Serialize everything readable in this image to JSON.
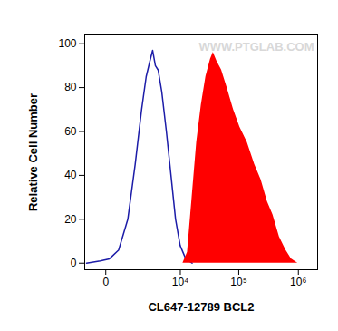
{
  "chart_data": {
    "type": "histogram",
    "x_label": "CL647-12789 BCL2",
    "y_label": "Relative Cell Number",
    "annotation": "WWW.PTGLAB.COM",
    "log": "x",
    "grid": false,
    "xlim": [
      -750,
      2100000
    ],
    "xticks": [
      0,
      {
        "value": 10000,
        "label": "10⁴"
      },
      {
        "value": 100000,
        "label": "10⁵"
      },
      {
        "value": 1000000,
        "label": "10⁶"
      }
    ],
    "ylim": [
      -3,
      104
    ],
    "yticks": [
      0,
      20,
      40,
      60,
      80,
      100
    ],
    "series": [
      {
        "type": "line",
        "color": "#1c1ca8",
        "x": [
          -660,
          -142,
          91,
          385,
          803,
          1262,
          1785,
          2247,
          2680,
          3048,
          3457,
          3913,
          4593,
          5598,
          6800,
          8230,
          9940,
          12440,
          16100
        ],
        "values": [
          0,
          1,
          2,
          6,
          20,
          45,
          70,
          85,
          92,
          97,
          90,
          88,
          78,
          60,
          40,
          20,
          8,
          2,
          0
        ]
      },
      {
        "type": "area",
        "color": "#ff0000",
        "x": [
          11120,
          13380,
          16100,
          19320,
          23170,
          27800,
          33300,
          37100,
          42800,
          51300,
          63500,
          81500,
          104500,
          139000,
          184700,
          237000,
          303000,
          375000,
          481000,
          616000,
          762000,
          977000
        ],
        "values": [
          0,
          5,
          30,
          55,
          72,
          85,
          93,
          96,
          92,
          88,
          80,
          70,
          62,
          55,
          45,
          38,
          28,
          22,
          12,
          6,
          2,
          0
        ]
      }
    ]
  }
}
